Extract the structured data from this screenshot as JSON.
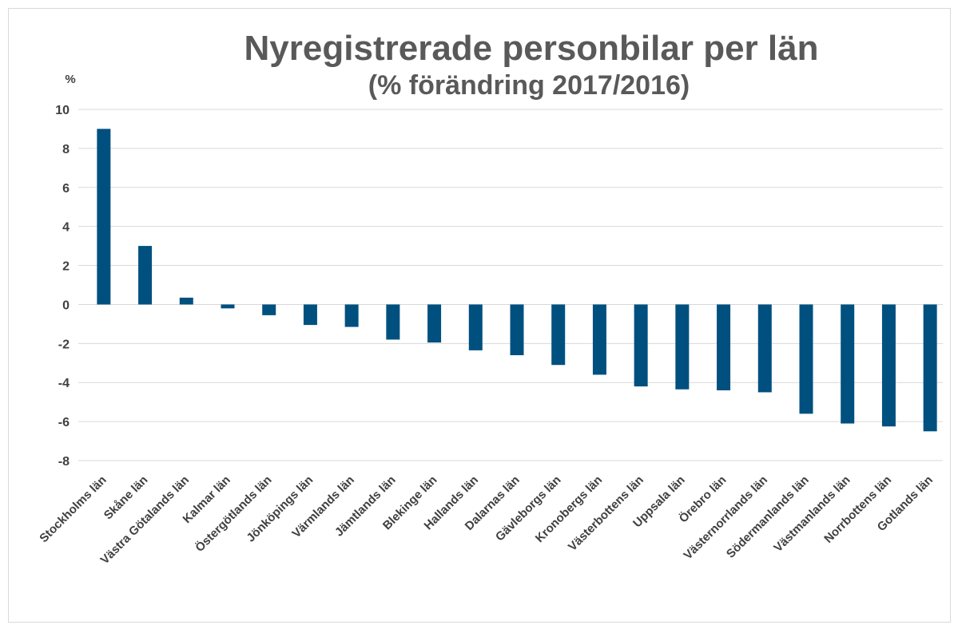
{
  "chart_data": {
    "type": "bar",
    "title": "Nyregistrerade personbilar per län",
    "subtitle": "(% förändring 2017/2016)",
    "y_label": "%",
    "categories": [
      "Stockholms län",
      "Skåne län",
      "Västra Götalands län",
      "Kalmar län",
      "Östergötlands län",
      "Jönköpings län",
      "Värmlands län",
      "Jämtlands län",
      "Blekinge län",
      "Hallands län",
      "Dalarnas län",
      "Gävleborgs län",
      "Kronobergs län",
      "Västerbottens län",
      "Uppsala län",
      "Örebro län",
      "Västernorrlands län",
      "Södermanlands län",
      "Västmanlands län",
      "Norrbottens län",
      "Gotlands län"
    ],
    "values": [
      9.0,
      3.0,
      0.35,
      -0.2,
      -0.55,
      -1.05,
      -1.15,
      -1.8,
      -1.95,
      -2.35,
      -2.6,
      -3.1,
      -3.6,
      -4.2,
      -4.35,
      -4.4,
      -4.5,
      -5.6,
      -6.1,
      -6.25,
      -6.5
    ],
    "color": "#00507f",
    "ylim": [
      -8,
      10
    ],
    "yticks": [
      -8,
      -6,
      -4,
      -2,
      0,
      2,
      4,
      6,
      8,
      10
    ],
    "grid": true
  }
}
